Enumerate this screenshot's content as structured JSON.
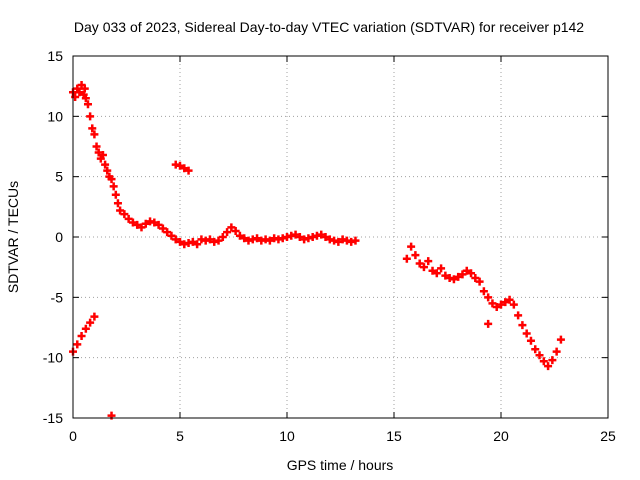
{
  "chart_data": {
    "type": "scatter",
    "title": "Day 033 of 2023, Sidereal Day-to-day VTEC variation (SDTVAR) for receiver p142",
    "xlabel": "GPS time / hours",
    "ylabel": "SDTVAR / TECUs",
    "xlim": [
      0,
      25
    ],
    "ylim": [
      -15,
      15
    ],
    "xticks": [
      0,
      5,
      10,
      15,
      20,
      25
    ],
    "yticks": [
      -15,
      -10,
      -5,
      0,
      5,
      10,
      15
    ],
    "grid": true,
    "marker": "+",
    "colors": {
      "series": "#ff0000",
      "grid": "#a0a0a0",
      "axis": "#000000"
    },
    "series": [
      {
        "name": "SDTVAR",
        "points": [
          [
            0.0,
            12.0
          ],
          [
            0.1,
            11.6
          ],
          [
            0.2,
            12.3
          ],
          [
            0.3,
            12.0
          ],
          [
            0.4,
            12.6
          ],
          [
            0.5,
            11.8
          ],
          [
            0.55,
            12.3
          ],
          [
            0.6,
            11.5
          ],
          [
            0.7,
            11.0
          ],
          [
            0.8,
            10.0
          ],
          [
            0.9,
            9.0
          ],
          [
            1.0,
            8.5
          ],
          [
            1.1,
            7.5
          ],
          [
            1.2,
            7.0
          ],
          [
            1.3,
            6.5
          ],
          [
            1.4,
            6.8
          ],
          [
            1.5,
            6.0
          ],
          [
            1.6,
            5.5
          ],
          [
            1.7,
            5.0
          ],
          [
            1.8,
            4.8
          ],
          [
            1.9,
            4.2
          ],
          [
            2.0,
            3.5
          ],
          [
            2.1,
            2.8
          ],
          [
            2.2,
            2.2
          ],
          [
            2.4,
            1.9
          ],
          [
            2.6,
            1.5
          ],
          [
            2.8,
            1.2
          ],
          [
            3.0,
            1.0
          ],
          [
            3.2,
            0.8
          ],
          [
            3.4,
            1.1
          ],
          [
            3.6,
            1.3
          ],
          [
            3.8,
            1.2
          ],
          [
            4.0,
            1.0
          ],
          [
            4.2,
            0.7
          ],
          [
            4.4,
            0.4
          ],
          [
            4.6,
            0.1
          ],
          [
            4.8,
            -0.2
          ],
          [
            5.0,
            -0.4
          ],
          [
            5.2,
            -0.6
          ],
          [
            5.4,
            -0.5
          ],
          [
            5.6,
            -0.4
          ],
          [
            5.8,
            -0.6
          ],
          [
            6.0,
            -0.2
          ],
          [
            6.2,
            -0.3
          ],
          [
            6.4,
            -0.2
          ],
          [
            6.6,
            -0.4
          ],
          [
            6.8,
            -0.3
          ],
          [
            7.0,
            0.0
          ],
          [
            7.2,
            0.4
          ],
          [
            7.4,
            0.8
          ],
          [
            7.6,
            0.5
          ],
          [
            7.8,
            0.1
          ],
          [
            8.0,
            -0.1
          ],
          [
            8.2,
            -0.3
          ],
          [
            8.4,
            -0.2
          ],
          [
            8.6,
            -0.1
          ],
          [
            8.8,
            -0.3
          ],
          [
            9.0,
            -0.2
          ],
          [
            9.2,
            -0.3
          ],
          [
            9.4,
            -0.1
          ],
          [
            9.6,
            -0.2
          ],
          [
            9.8,
            -0.1
          ],
          [
            10.0,
            0.0
          ],
          [
            10.2,
            0.1
          ],
          [
            10.4,
            0.2
          ],
          [
            10.6,
            0.0
          ],
          [
            10.8,
            -0.2
          ],
          [
            11.0,
            -0.1
          ],
          [
            11.2,
            0.0
          ],
          [
            11.4,
            0.1
          ],
          [
            11.6,
            0.2
          ],
          [
            11.8,
            0.0
          ],
          [
            12.0,
            -0.2
          ],
          [
            12.2,
            -0.3
          ],
          [
            12.4,
            -0.4
          ],
          [
            12.6,
            -0.2
          ],
          [
            12.8,
            -0.3
          ],
          [
            13.0,
            -0.4
          ],
          [
            13.2,
            -0.3
          ],
          [
            0.0,
            -9.5
          ],
          [
            0.2,
            -8.9
          ],
          [
            0.4,
            -8.2
          ],
          [
            0.6,
            -7.6
          ],
          [
            0.8,
            -7.1
          ],
          [
            1.0,
            -6.6
          ],
          [
            1.8,
            -14.8
          ],
          [
            4.8,
            6.0
          ],
          [
            5.0,
            5.9
          ],
          [
            5.2,
            5.7
          ],
          [
            5.4,
            5.5
          ],
          [
            15.6,
            -1.8
          ],
          [
            15.8,
            -0.8
          ],
          [
            16.0,
            -1.5
          ],
          [
            16.2,
            -2.2
          ],
          [
            16.4,
            -2.5
          ],
          [
            16.6,
            -2.0
          ],
          [
            16.8,
            -2.8
          ],
          [
            17.0,
            -3.0
          ],
          [
            17.2,
            -2.6
          ],
          [
            17.4,
            -3.2
          ],
          [
            17.6,
            -3.4
          ],
          [
            17.8,
            -3.5
          ],
          [
            18.0,
            -3.3
          ],
          [
            18.2,
            -3.1
          ],
          [
            18.4,
            -2.8
          ],
          [
            18.6,
            -3.0
          ],
          [
            18.8,
            -3.4
          ],
          [
            19.0,
            -3.7
          ],
          [
            19.2,
            -4.5
          ],
          [
            19.4,
            -5.0
          ],
          [
            19.6,
            -5.5
          ],
          [
            19.8,
            -5.8
          ],
          [
            20.0,
            -5.6
          ],
          [
            20.2,
            -5.4
          ],
          [
            20.4,
            -5.2
          ],
          [
            20.6,
            -5.6
          ],
          [
            20.8,
            -6.5
          ],
          [
            21.0,
            -7.3
          ],
          [
            21.2,
            -8.0
          ],
          [
            21.4,
            -8.6
          ],
          [
            21.6,
            -9.3
          ],
          [
            21.8,
            -9.8
          ],
          [
            22.0,
            -10.3
          ],
          [
            22.2,
            -10.7
          ],
          [
            22.4,
            -10.2
          ],
          [
            22.6,
            -9.5
          ],
          [
            22.8,
            -8.5
          ],
          [
            19.4,
            -7.2
          ]
        ]
      }
    ]
  }
}
